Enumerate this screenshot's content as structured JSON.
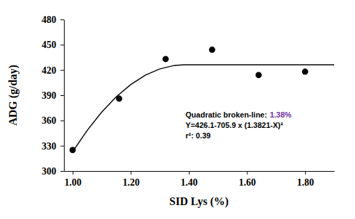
{
  "chart_data": {
    "type": "scatter",
    "x_label": "SID Lys (%)",
    "y_label": "ADG (g/day)",
    "xlim": [
      0.97,
      1.9
    ],
    "ylim": [
      300,
      480
    ],
    "xticks": [
      {
        "value": 1.0,
        "label": "1.00"
      },
      {
        "value": 1.2,
        "label": "1.20"
      },
      {
        "value": 1.4,
        "label": "1.40"
      },
      {
        "value": 1.6,
        "label": "1.60"
      },
      {
        "value": 1.8,
        "label": "1.80"
      }
    ],
    "yticks": [
      300,
      330,
      360,
      390,
      420,
      450,
      480
    ],
    "grid": false,
    "series": [
      {
        "type": "scatter",
        "marker": "circle",
        "color": "#000000",
        "x": [
          1.0,
          1.16,
          1.32,
          1.48,
          1.64,
          1.8
        ],
        "values": [
          325,
          386,
          433,
          444,
          414,
          418
        ]
      },
      {
        "type": "line",
        "line_style": "solid",
        "color": "#000000",
        "x": [
          1.0,
          1.05,
          1.1,
          1.15,
          1.2,
          1.25,
          1.3,
          1.35,
          1.38,
          1.9
        ],
        "values": [
          323.0,
          348.2,
          369.9,
          388.1,
          402.7,
          413.8,
          421.3,
          425.4,
          426.1,
          426.1
        ]
      }
    ],
    "annotations": [
      {
        "text": "Quadratic broken-line:",
        "color": "#000000"
      },
      {
        "text": "1.38%",
        "color": "#7030a0"
      },
      {
        "text": "Y=426.1-705.9 x (1.3821-X)²",
        "color": "#000000"
      },
      {
        "text": "r²: 0.39",
        "color": "#000000"
      }
    ]
  }
}
